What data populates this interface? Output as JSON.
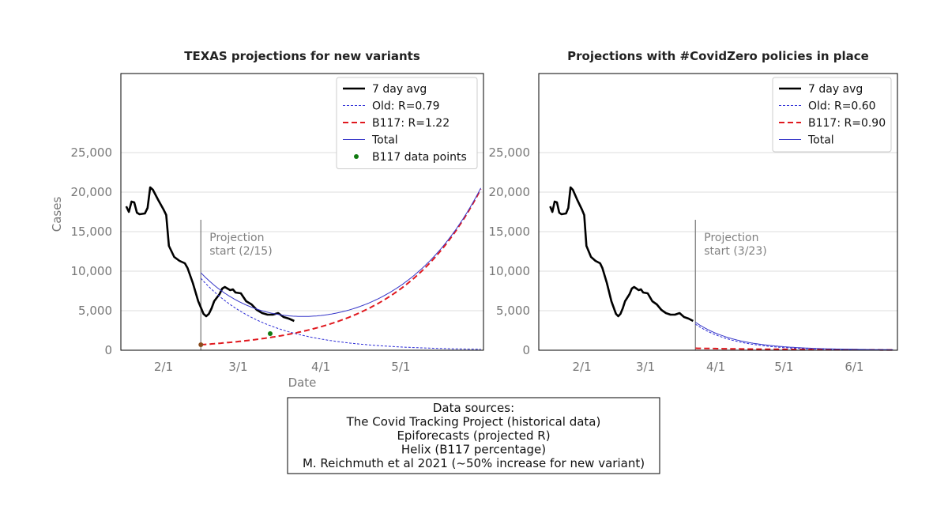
{
  "chart_data": [
    {
      "type": "line",
      "title": "TEXAS projections for new variants",
      "xlabel": "Date",
      "ylabel": "Cases",
      "x_range": [
        "2021-01-16",
        "2021-06-01"
      ],
      "ylim": [
        0,
        35000
      ],
      "y_ticks": [
        0,
        5000,
        10000,
        15000,
        20000,
        25000
      ],
      "y_tick_labels": [
        "0",
        "5,000",
        "10,000",
        "15,000",
        "20,000",
        "25,000"
      ],
      "x_ticks": [
        "2021-02-01",
        "2021-03-01",
        "2021-04-01",
        "2021-05-01"
      ],
      "x_tick_labels": [
        "2/1",
        "3/1",
        "4/1",
        "5/1"
      ],
      "grid": "horizontal",
      "legend_position": "top-right",
      "annotation": {
        "date": "2021-02-15",
        "line_top": 16500,
        "lines": [
          "Projection",
          "start (2/15)"
        ]
      },
      "series": [
        {
          "name": "7 day avg",
          "style": "solid-thick",
          "color": "#000000",
          "points": [
            [
              "2021-01-18",
              18200
            ],
            [
              "2021-01-19",
              17500
            ],
            [
              "2021-01-20",
              18800
            ],
            [
              "2021-01-21",
              18700
            ],
            [
              "2021-01-22",
              17400
            ],
            [
              "2021-01-23",
              17200
            ],
            [
              "2021-01-25",
              17300
            ],
            [
              "2021-01-26",
              18000
            ],
            [
              "2021-01-27",
              20600
            ],
            [
              "2021-01-28",
              20300
            ],
            [
              "2021-01-30",
              19000
            ],
            [
              "2021-02-01",
              17800
            ],
            [
              "2021-02-02",
              17100
            ],
            [
              "2021-02-03",
              13200
            ],
            [
              "2021-02-05",
              11800
            ],
            [
              "2021-02-07",
              11300
            ],
            [
              "2021-02-09",
              11000
            ],
            [
              "2021-02-10",
              10400
            ],
            [
              "2021-02-12",
              8500
            ],
            [
              "2021-02-14",
              6200
            ],
            [
              "2021-02-16",
              4600
            ],
            [
              "2021-02-17",
              4300
            ],
            [
              "2021-02-18",
              4600
            ],
            [
              "2021-02-19",
              5300
            ],
            [
              "2021-02-20",
              6200
            ],
            [
              "2021-02-22",
              7100
            ],
            [
              "2021-02-23",
              7800
            ],
            [
              "2021-02-24",
              8000
            ],
            [
              "2021-02-25",
              7800
            ],
            [
              "2021-02-26",
              7600
            ],
            [
              "2021-02-27",
              7700
            ],
            [
              "2021-02-28",
              7300
            ],
            [
              "2021-03-02",
              7200
            ],
            [
              "2021-03-04",
              6200
            ],
            [
              "2021-03-06",
              5800
            ],
            [
              "2021-03-08",
              5100
            ],
            [
              "2021-03-10",
              4700
            ],
            [
              "2021-03-12",
              4500
            ],
            [
              "2021-03-14",
              4500
            ],
            [
              "2021-03-16",
              4700
            ],
            [
              "2021-03-18",
              4200
            ],
            [
              "2021-03-20",
              4000
            ],
            [
              "2021-03-22",
              3700
            ]
          ]
        },
        {
          "name": "Old: R=0.79",
          "style": "dotted",
          "color": "#2b2bd6",
          "model": "exp",
          "start": [
            "2021-02-15",
            9100
          ],
          "end": [
            "2021-05-31",
            120
          ]
        },
        {
          "name": "B117: R=1.22",
          "style": "dashed-thick",
          "color": "#e0191f",
          "model": "exp",
          "start": [
            "2021-02-15",
            700
          ],
          "end": [
            "2021-05-31",
            20400
          ]
        },
        {
          "name": "Total",
          "style": "solid-thin",
          "color": "#3535c8",
          "model": "sum"
        },
        {
          "name": "B117 data points",
          "style": "markers",
          "color": "#107a10",
          "points": [
            [
              "2021-02-15",
              700
            ],
            [
              "2021-03-13",
              2100
            ]
          ]
        }
      ]
    },
    {
      "type": "line",
      "title": "Projections with #CovidZero policies in place",
      "xlabel": "",
      "ylabel": "",
      "x_range": [
        "2021-01-13",
        "2021-06-20"
      ],
      "ylim": [
        0,
        35000
      ],
      "y_ticks": [
        0,
        5000,
        10000,
        15000,
        20000,
        25000
      ],
      "y_tick_labels": [
        "0",
        "5,000",
        "10,000",
        "15,000",
        "20,000",
        "25,000"
      ],
      "x_ticks": [
        "2021-02-01",
        "2021-03-01",
        "2021-04-01",
        "2021-05-01",
        "2021-06-01"
      ],
      "x_tick_labels": [
        "2/1",
        "3/1",
        "4/1",
        "5/1",
        "6/1"
      ],
      "grid": "horizontal",
      "legend_position": "top-right",
      "annotation": {
        "date": "2021-03-23",
        "line_top": 16500,
        "lines": [
          "Projection",
          "start (3/23)"
        ]
      },
      "series": [
        {
          "name": "7 day avg",
          "style": "solid-thick",
          "color": "#000000",
          "points": [
            [
              "2021-01-18",
              18200
            ],
            [
              "2021-01-19",
              17500
            ],
            [
              "2021-01-20",
              18800
            ],
            [
              "2021-01-21",
              18700
            ],
            [
              "2021-01-22",
              17400
            ],
            [
              "2021-01-23",
              17200
            ],
            [
              "2021-01-25",
              17300
            ],
            [
              "2021-01-26",
              18000
            ],
            [
              "2021-01-27",
              20600
            ],
            [
              "2021-01-28",
              20300
            ],
            [
              "2021-01-30",
              19000
            ],
            [
              "2021-02-01",
              17800
            ],
            [
              "2021-02-02",
              17100
            ],
            [
              "2021-02-03",
              13200
            ],
            [
              "2021-02-05",
              11800
            ],
            [
              "2021-02-07",
              11300
            ],
            [
              "2021-02-09",
              11000
            ],
            [
              "2021-02-10",
              10400
            ],
            [
              "2021-02-12",
              8500
            ],
            [
              "2021-02-14",
              6200
            ],
            [
              "2021-02-16",
              4600
            ],
            [
              "2021-02-17",
              4300
            ],
            [
              "2021-02-18",
              4600
            ],
            [
              "2021-02-19",
              5300
            ],
            [
              "2021-02-20",
              6200
            ],
            [
              "2021-02-22",
              7100
            ],
            [
              "2021-02-23",
              7800
            ],
            [
              "2021-02-24",
              8000
            ],
            [
              "2021-02-25",
              7800
            ],
            [
              "2021-02-26",
              7600
            ],
            [
              "2021-02-27",
              7700
            ],
            [
              "2021-02-28",
              7300
            ],
            [
              "2021-03-02",
              7200
            ],
            [
              "2021-03-04",
              6200
            ],
            [
              "2021-03-06",
              5800
            ],
            [
              "2021-03-08",
              5100
            ],
            [
              "2021-03-10",
              4700
            ],
            [
              "2021-03-12",
              4500
            ],
            [
              "2021-03-14",
              4500
            ],
            [
              "2021-03-16",
              4700
            ],
            [
              "2021-03-18",
              4200
            ],
            [
              "2021-03-20",
              4000
            ],
            [
              "2021-03-22",
              3700
            ]
          ]
        },
        {
          "name": "Old: R=0.60",
          "style": "dotted",
          "color": "#2b2bd6",
          "model": "exp",
          "start": [
            "2021-03-23",
            3300
          ],
          "end": [
            "2021-06-18",
            20
          ]
        },
        {
          "name": "B117: R=0.90",
          "style": "dashed-thick",
          "color": "#e0191f",
          "model": "exp",
          "start": [
            "2021-03-23",
            250
          ],
          "end": [
            "2021-06-18",
            40
          ]
        },
        {
          "name": "Total",
          "style": "solid-thin",
          "color": "#3535c8",
          "model": "sum"
        }
      ]
    }
  ],
  "sources_box": {
    "lines": [
      "Data sources:",
      "The Covid Tracking Project (historical data)",
      "Epiforecasts (projected R)",
      "Helix (B117 percentage)",
      "M. Reichmuth et al 2021 (~50% increase for new variant)"
    ]
  }
}
